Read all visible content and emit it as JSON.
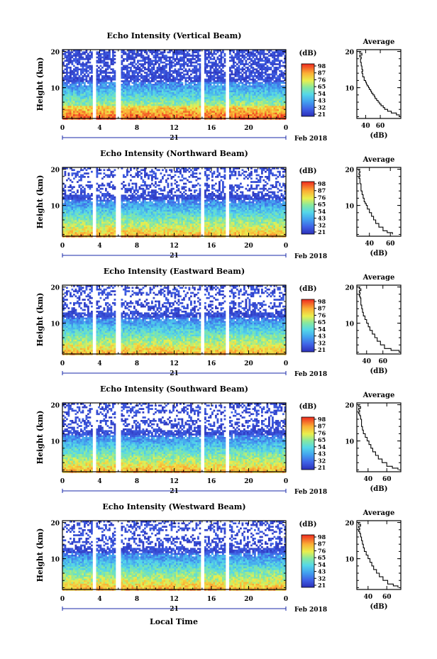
{
  "x_label": "Local Time",
  "chart_data": [
    {
      "type": "heatmap",
      "title": "Echo Intensity (Vertical Beam)",
      "ylabel": "Height (km)",
      "x_ticks": [
        "0",
        "4",
        "8",
        "12",
        "16",
        "20",
        "0"
      ],
      "y_ticks": [
        "20",
        "10"
      ],
      "xlim": [
        0,
        24
      ],
      "ylim": [
        1.5,
        20.5
      ],
      "date_day": "21",
      "date_month": "Feb 2018",
      "data_gaps_hours": [
        [
          3.2,
          3.6
        ],
        [
          5.6,
          6.2
        ],
        [
          14.8,
          15.2
        ],
        [
          17.4,
          17.9
        ]
      ],
      "colorbar": {
        "unit": "(dB)",
        "ticks": [
          "98",
          "87",
          "76",
          "65",
          "54",
          "43",
          "32",
          "21"
        ],
        "range": [
          21,
          98
        ]
      },
      "profile": {
        "title": "Average",
        "xlabel": "(dB)",
        "x_ticks": [
          "40",
          "60"
        ],
        "xlim": [
          28,
          88
        ],
        "y_ticks": [
          "20",
          "10"
        ],
        "points": [
          [
            34,
            20
          ],
          [
            32,
            19.5
          ],
          [
            35,
            19
          ],
          [
            32,
            18.5
          ],
          [
            34,
            18
          ],
          [
            33,
            17.5
          ],
          [
            33,
            17
          ],
          [
            34,
            16.5
          ],
          [
            34,
            16
          ],
          [
            35,
            15.5
          ],
          [
            35,
            15
          ],
          [
            36,
            14.5
          ],
          [
            35,
            14
          ],
          [
            36,
            13.5
          ],
          [
            36,
            13
          ],
          [
            38,
            12.5
          ],
          [
            38,
            12
          ],
          [
            40,
            11.5
          ],
          [
            41,
            11
          ],
          [
            42,
            10.5
          ],
          [
            44,
            10
          ],
          [
            45,
            9.5
          ],
          [
            47,
            9
          ],
          [
            48,
            8.5
          ],
          [
            50,
            8
          ],
          [
            52,
            7.5
          ],
          [
            53,
            7
          ],
          [
            55,
            6.5
          ],
          [
            57,
            6
          ],
          [
            59,
            5.5
          ],
          [
            61,
            5
          ],
          [
            64,
            4.5
          ],
          [
            66,
            4
          ],
          [
            70,
            3.5
          ],
          [
            75,
            3
          ],
          [
            82,
            2.5
          ],
          [
            86,
            2
          ]
        ]
      }
    },
    {
      "type": "heatmap",
      "title": "Echo Intensity (Northward Beam)",
      "ylabel": "Height (km)",
      "x_ticks": [
        "0",
        "4",
        "8",
        "12",
        "16",
        "20",
        "0"
      ],
      "y_ticks": [
        "20",
        "10"
      ],
      "xlim": [
        0,
        24
      ],
      "ylim": [
        1.5,
        20.5
      ],
      "date_day": "21",
      "date_month": "Feb 2018",
      "data_gaps_hours": [
        [
          3.2,
          3.6
        ],
        [
          5.6,
          6.2
        ],
        [
          14.8,
          15.2
        ],
        [
          17.4,
          17.9
        ]
      ],
      "colorbar": {
        "unit": "(dB)",
        "ticks": [
          "98",
          "87",
          "76",
          "65",
          "54",
          "43",
          "32",
          "21"
        ],
        "range": [
          21,
          98
        ]
      },
      "profile": {
        "title": "Average",
        "xlabel": "(dB)",
        "x_ticks": [
          "40",
          "60"
        ],
        "xlim": [
          28,
          70
        ],
        "y_ticks": [
          "20",
          "10"
        ],
        "points": [
          [
            31,
            20
          ],
          [
            30,
            19.5
          ],
          [
            31,
            19
          ],
          [
            30,
            18.5
          ],
          [
            31,
            18
          ],
          [
            30,
            17.5
          ],
          [
            31,
            17
          ],
          [
            31,
            16
          ],
          [
            32,
            15
          ],
          [
            32,
            14
          ],
          [
            33,
            13
          ],
          [
            34,
            12
          ],
          [
            35,
            11
          ],
          [
            36,
            10.5
          ],
          [
            37,
            10
          ],
          [
            38,
            9
          ],
          [
            40,
            8
          ],
          [
            42,
            7
          ],
          [
            44,
            6
          ],
          [
            46,
            5
          ],
          [
            49,
            4
          ],
          [
            53,
            3
          ],
          [
            57,
            2.5
          ],
          [
            62,
            2
          ]
        ]
      }
    },
    {
      "type": "heatmap",
      "title": "Echo Intensity (Eastward Beam)",
      "ylabel": "Height (km)",
      "x_ticks": [
        "0",
        "4",
        "8",
        "12",
        "16",
        "20",
        "0"
      ],
      "y_ticks": [
        "20",
        "10"
      ],
      "xlim": [
        0,
        24
      ],
      "ylim": [
        1.5,
        20.5
      ],
      "date_day": "21",
      "date_month": "Feb 2018",
      "data_gaps_hours": [
        [
          3.2,
          3.6
        ],
        [
          5.6,
          6.2
        ],
        [
          14.8,
          15.2
        ],
        [
          17.4,
          17.9
        ]
      ],
      "colorbar": {
        "unit": "(dB)",
        "ticks": [
          "98",
          "87",
          "76",
          "65",
          "54",
          "43",
          "32",
          "21"
        ],
        "range": [
          21,
          98
        ]
      },
      "profile": {
        "title": "Average",
        "xlabel": "(dB)",
        "x_ticks": [
          "40",
          "60"
        ],
        "xlim": [
          28,
          82
        ],
        "y_ticks": [
          "20",
          "10"
        ],
        "points": [
          [
            32,
            20
          ],
          [
            31,
            19.5
          ],
          [
            33,
            19
          ],
          [
            31,
            18.5
          ],
          [
            32,
            18
          ],
          [
            31,
            17.5
          ],
          [
            32,
            17
          ],
          [
            33,
            16
          ],
          [
            33,
            15
          ],
          [
            34,
            14
          ],
          [
            35,
            13
          ],
          [
            36,
            12
          ],
          [
            38,
            11
          ],
          [
            40,
            10
          ],
          [
            42,
            9
          ],
          [
            44,
            8
          ],
          [
            47,
            7
          ],
          [
            50,
            6
          ],
          [
            53,
            5
          ],
          [
            57,
            4
          ],
          [
            62,
            3
          ],
          [
            70,
            2.5
          ],
          [
            80,
            2
          ]
        ]
      }
    },
    {
      "type": "heatmap",
      "title": "Echo Intensity (Southward Beam)",
      "ylabel": "Height (km)",
      "x_ticks": [
        "0",
        "4",
        "8",
        "12",
        "16",
        "20",
        "0"
      ],
      "y_ticks": [
        "20",
        "10"
      ],
      "xlim": [
        0,
        24
      ],
      "ylim": [
        1.5,
        20.5
      ],
      "date_day": "21",
      "date_month": "Feb 2018",
      "data_gaps_hours": [
        [
          3.2,
          3.6
        ],
        [
          5.6,
          6.2
        ],
        [
          14.8,
          15.2
        ],
        [
          17.4,
          17.9
        ]
      ],
      "colorbar": {
        "unit": "(dB)",
        "ticks": [
          "98",
          "87",
          "76",
          "65",
          "54",
          "43",
          "32",
          "21"
        ],
        "range": [
          21,
          98
        ]
      },
      "profile": {
        "title": "Average",
        "xlabel": "(dB)",
        "x_ticks": [
          "40",
          "60"
        ],
        "xlim": [
          28,
          75
        ],
        "y_ticks": [
          "20",
          "10"
        ],
        "points": [
          [
            31,
            20
          ],
          [
            30,
            19.5
          ],
          [
            32,
            19
          ],
          [
            30,
            18.5
          ],
          [
            31,
            18
          ],
          [
            30,
            17.5
          ],
          [
            31,
            17
          ],
          [
            32,
            16
          ],
          [
            33,
            15
          ],
          [
            33,
            14
          ],
          [
            34,
            13
          ],
          [
            35,
            12
          ],
          [
            37,
            11
          ],
          [
            39,
            10
          ],
          [
            41,
            9
          ],
          [
            43,
            8
          ],
          [
            45,
            7
          ],
          [
            48,
            6
          ],
          [
            51,
            5
          ],
          [
            55,
            4
          ],
          [
            60,
            3
          ],
          [
            66,
            2.5
          ],
          [
            72,
            2
          ]
        ]
      }
    },
    {
      "type": "heatmap",
      "title": "Echo Intensity (Westward Beam)",
      "ylabel": "Height (km)",
      "x_ticks": [
        "0",
        "4",
        "8",
        "12",
        "16",
        "20",
        "0"
      ],
      "y_ticks": [
        "20",
        "10"
      ],
      "xlim": [
        0,
        24
      ],
      "ylim": [
        1.5,
        20.5
      ],
      "date_day": "21",
      "date_month": "Feb 2018",
      "data_gaps_hours": [
        [
          3.2,
          3.6
        ],
        [
          5.6,
          6.2
        ],
        [
          14.8,
          15.2
        ],
        [
          17.4,
          17.9
        ]
      ],
      "colorbar": {
        "unit": "(dB)",
        "ticks": [
          "98",
          "87",
          "76",
          "65",
          "54",
          "43",
          "32",
          "21"
        ],
        "range": [
          21,
          98
        ]
      },
      "profile": {
        "title": "Average",
        "xlabel": "(dB)",
        "x_ticks": [
          "40",
          "60"
        ],
        "xlim": [
          28,
          75
        ],
        "y_ticks": [
          "20",
          "10"
        ],
        "points": [
          [
            31,
            20
          ],
          [
            30,
            19.5
          ],
          [
            32,
            19
          ],
          [
            30,
            18.5
          ],
          [
            31,
            18
          ],
          [
            30,
            17.5
          ],
          [
            31,
            17
          ],
          [
            32,
            16
          ],
          [
            33,
            15
          ],
          [
            34,
            14
          ],
          [
            35,
            13
          ],
          [
            36,
            12
          ],
          [
            38,
            11
          ],
          [
            40,
            10
          ],
          [
            42,
            9
          ],
          [
            44,
            8
          ],
          [
            46,
            7
          ],
          [
            49,
            6
          ],
          [
            52,
            5
          ],
          [
            56,
            4
          ],
          [
            61,
            3
          ],
          [
            67,
            2.5
          ],
          [
            72,
            2
          ]
        ]
      }
    }
  ]
}
